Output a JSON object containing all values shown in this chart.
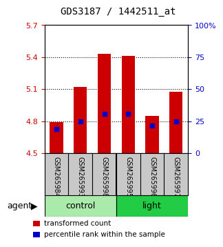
{
  "title": "GDS3187 / 1442511_at",
  "samples": [
    "GSM265984",
    "GSM265993",
    "GSM265998",
    "GSM265995",
    "GSM265996",
    "GSM265997"
  ],
  "bar_tops": [
    4.79,
    5.12,
    5.43,
    5.41,
    4.85,
    5.08
  ],
  "bar_base": 4.5,
  "blue_vals": [
    4.73,
    4.8,
    4.87,
    4.87,
    4.76,
    4.8
  ],
  "ylim_left": [
    4.5,
    5.7
  ],
  "ylim_right": [
    0,
    100
  ],
  "yticks_left": [
    4.5,
    4.8,
    5.1,
    5.4,
    5.7
  ],
  "yticks_right": [
    0,
    25,
    50,
    75,
    100
  ],
  "ytick_labels_right": [
    "0",
    "25",
    "50",
    "75",
    "100%"
  ],
  "grid_vals": [
    4.8,
    5.1,
    5.4
  ],
  "groups": [
    {
      "name": "control",
      "indices": [
        0,
        1,
        2
      ],
      "color": "#AAEAAA"
    },
    {
      "name": "light",
      "indices": [
        3,
        4,
        5
      ],
      "color": "#22CC44"
    }
  ],
  "bar_color": "#CC0000",
  "blue_color": "#0000CC",
  "label_area_color": "#C8C8C8",
  "left_tick_color": "#CC0000",
  "right_tick_color": "#0000CC",
  "legend": [
    {
      "color": "#CC0000",
      "label": "transformed count"
    },
    {
      "color": "#0000CC",
      "label": "percentile rank within the sample"
    }
  ]
}
